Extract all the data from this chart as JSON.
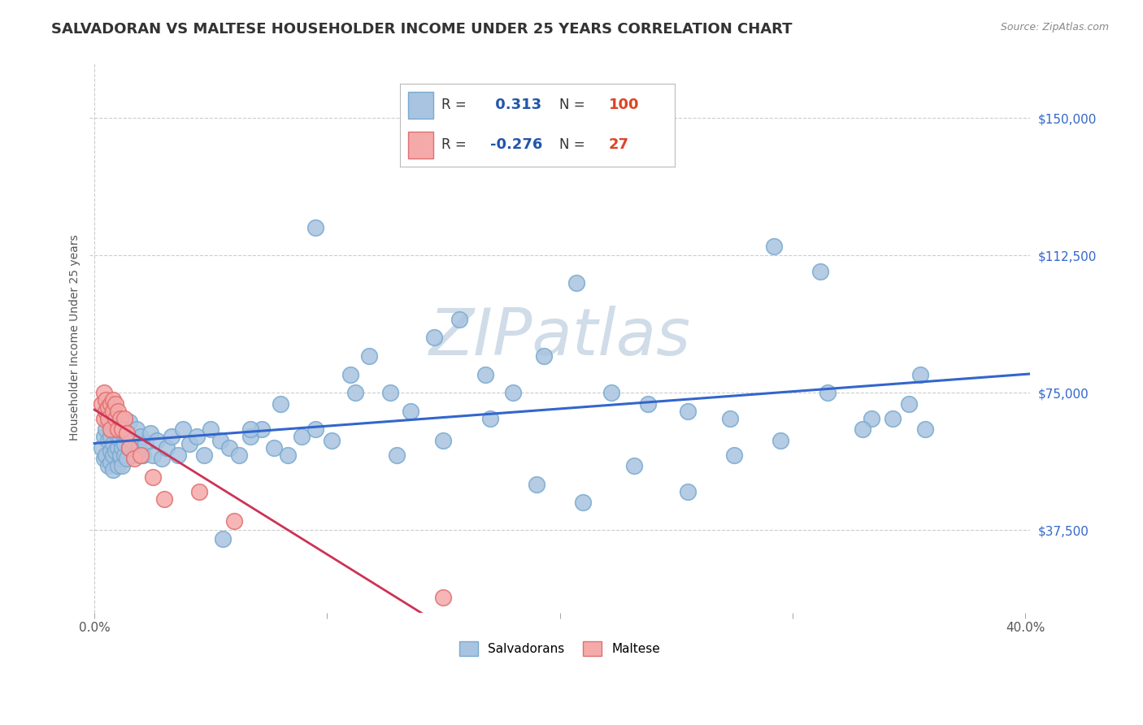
{
  "title": "SALVADORAN VS MALTESE HOUSEHOLDER INCOME UNDER 25 YEARS CORRELATION CHART",
  "source": "Source: ZipAtlas.com",
  "ylabel_label": "Householder Income Under 25 years",
  "xlim": [
    -0.002,
    0.402
  ],
  "ylim": [
    15000,
    165000
  ],
  "ytick_positions": [
    37500,
    75000,
    112500,
    150000
  ],
  "ytick_labels": [
    "$37,500",
    "$75,000",
    "$112,500",
    "$150,000"
  ],
  "grid_color": "#cccccc",
  "background_color": "#ffffff",
  "watermark_text": "ZIPatlas",
  "watermark_color": "#d0dce8",
  "r_salv": 0.313,
  "n_salv": 100,
  "r_malt": -0.276,
  "n_malt": 27,
  "legend_r_color": "#2255aa",
  "legend_n_color": "#dd4422",
  "salv_dot_color": "#a8c4e0",
  "salv_dot_edge": "#7aaacf",
  "malt_dot_color": "#f5aaaa",
  "malt_dot_edge": "#e07070",
  "salv_line_color": "#3366cc",
  "malt_line_color": "#cc3355",
  "malt_dash_color": "#f0b0b8",
  "title_color": "#333333",
  "title_fontsize": 13,
  "salv_x": [
    0.003,
    0.004,
    0.004,
    0.005,
    0.005,
    0.005,
    0.006,
    0.006,
    0.006,
    0.007,
    0.007,
    0.007,
    0.007,
    0.008,
    0.008,
    0.008,
    0.009,
    0.009,
    0.009,
    0.01,
    0.01,
    0.01,
    0.011,
    0.011,
    0.011,
    0.012,
    0.012,
    0.012,
    0.013,
    0.013,
    0.014,
    0.014,
    0.015,
    0.015,
    0.016,
    0.017,
    0.018,
    0.019,
    0.02,
    0.021,
    0.022,
    0.024,
    0.025,
    0.027,
    0.029,
    0.031,
    0.033,
    0.036,
    0.038,
    0.041,
    0.044,
    0.047,
    0.05,
    0.054,
    0.058,
    0.062,
    0.067,
    0.072,
    0.077,
    0.083,
    0.089,
    0.095,
    0.102,
    0.11,
    0.118,
    0.127,
    0.136,
    0.146,
    0.157,
    0.168,
    0.18,
    0.193,
    0.207,
    0.222,
    0.238,
    0.255,
    0.273,
    0.292,
    0.312,
    0.334,
    0.357,
    0.355,
    0.35,
    0.343,
    0.33,
    0.315,
    0.295,
    0.275,
    0.255,
    0.232,
    0.21,
    0.19,
    0.17,
    0.15,
    0.13,
    0.112,
    0.095,
    0.08,
    0.067,
    0.055
  ],
  "salv_y": [
    60000,
    63000,
    57000,
    65000,
    58000,
    70000,
    62000,
    55000,
    67000,
    59000,
    63000,
    56000,
    72000,
    58000,
    61000,
    54000,
    65000,
    59000,
    68000,
    60000,
    55000,
    63000,
    57000,
    62000,
    58000,
    60000,
    55000,
    64000,
    58000,
    61000,
    63000,
    57000,
    67000,
    60000,
    62000,
    58000,
    65000,
    60000,
    63000,
    58000,
    61000,
    64000,
    58000,
    62000,
    57000,
    60000,
    63000,
    58000,
    65000,
    61000,
    63000,
    58000,
    65000,
    62000,
    60000,
    58000,
    63000,
    65000,
    60000,
    58000,
    63000,
    65000,
    62000,
    80000,
    85000,
    75000,
    70000,
    90000,
    95000,
    80000,
    75000,
    85000,
    105000,
    75000,
    72000,
    70000,
    68000,
    115000,
    108000,
    68000,
    65000,
    80000,
    72000,
    68000,
    65000,
    75000,
    62000,
    58000,
    48000,
    55000,
    45000,
    50000,
    68000,
    62000,
    58000,
    75000,
    120000,
    72000,
    65000,
    35000
  ],
  "malt_x": [
    0.003,
    0.004,
    0.004,
    0.005,
    0.005,
    0.006,
    0.006,
    0.007,
    0.007,
    0.008,
    0.008,
    0.009,
    0.009,
    0.01,
    0.01,
    0.011,
    0.012,
    0.013,
    0.014,
    0.015,
    0.017,
    0.02,
    0.025,
    0.03,
    0.045,
    0.06,
    0.15
  ],
  "malt_y": [
    72000,
    75000,
    68000,
    73000,
    70000,
    71000,
    68000,
    72000,
    65000,
    70000,
    73000,
    68000,
    72000,
    65000,
    70000,
    68000,
    65000,
    68000,
    64000,
    60000,
    57000,
    58000,
    52000,
    46000,
    48000,
    40000,
    19000
  ]
}
